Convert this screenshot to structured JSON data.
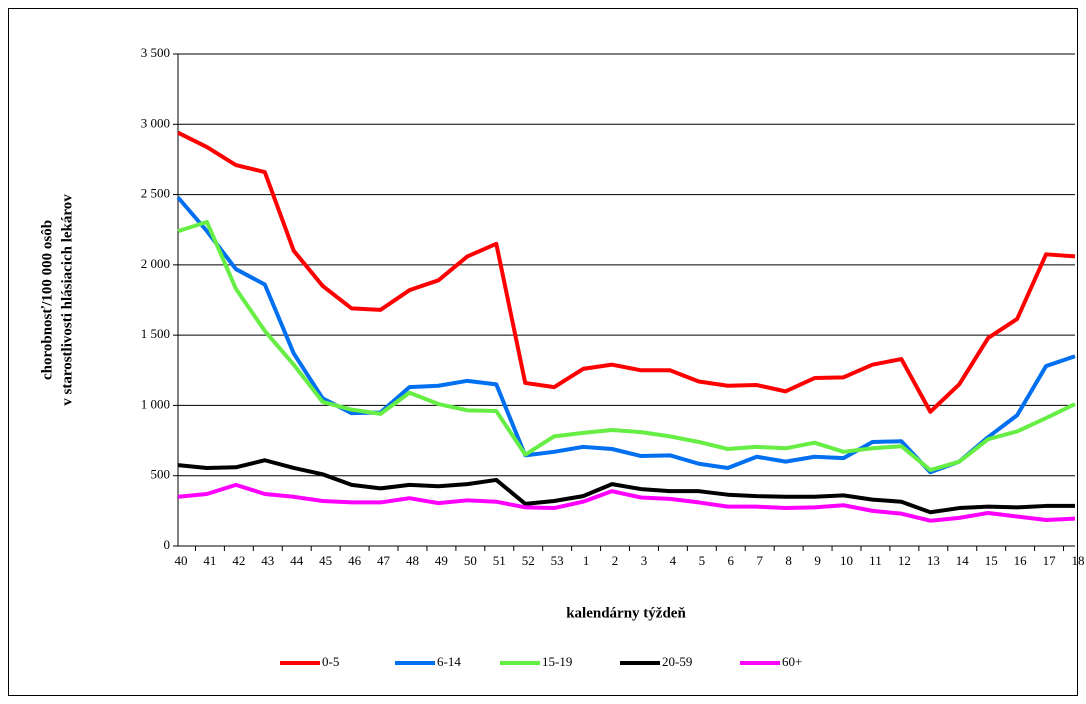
{
  "chart_data": {
    "type": "line",
    "ylabel": [
      "chorobnosť/100 000 osôb",
      "v starostlivosti hlásiacich lekárov"
    ],
    "xlabel": "kalendárny týždeň",
    "categories": [
      "40",
      "41",
      "42",
      "43",
      "44",
      "45",
      "46",
      "47",
      "48",
      "49",
      "50",
      "51",
      "52",
      "53",
      "1",
      "2",
      "3",
      "4",
      "5",
      "6",
      "7",
      "8",
      "9",
      "10",
      "11",
      "12",
      "13",
      "14",
      "15",
      "16",
      "17",
      "18"
    ],
    "ylim": [
      0,
      3500
    ],
    "yticks": [
      0,
      500,
      {
        "value": 1000,
        "label": "1 000"
      },
      {
        "value": 1500,
        "label": "1 500"
      },
      {
        "value": 2000,
        "label": "2 000"
      },
      {
        "value": 2500,
        "label": "2 500"
      },
      {
        "value": 3000,
        "label": "3 000"
      },
      {
        "value": 3500,
        "label": "3 500"
      }
    ],
    "grid": true,
    "legend": "bottom",
    "series": [
      {
        "name": "0-5",
        "color": "#ff0000",
        "values": [
          2940,
          2838,
          2710,
          2660,
          2100,
          1850,
          1690,
          1680,
          1820,
          1890,
          2060,
          2150,
          1160,
          1130,
          1260,
          1290,
          1250,
          1250,
          1170,
          1140,
          1145,
          1100,
          1195,
          1200,
          1290,
          1330,
          955,
          1150,
          1480,
          1615,
          2075,
          2060
        ]
      },
      {
        "name": "6-14",
        "color": "#0070f0",
        "values": [
          2480,
          2240,
          1970,
          1860,
          1370,
          1050,
          945,
          950,
          1130,
          1140,
          1175,
          1150,
          645,
          670,
          705,
          690,
          640,
          645,
          585,
          555,
          635,
          600,
          635,
          625,
          740,
          745,
          525,
          600,
          775,
          930,
          1280,
          1350
        ]
      },
      {
        "name": "15-19",
        "color": "#66ee44",
        "values": [
          2240,
          2305,
          1830,
          1530,
          1290,
          1025,
          970,
          940,
          1090,
          1010,
          965,
          960,
          650,
          780,
          805,
          825,
          810,
          780,
          740,
          690,
          705,
          695,
          735,
          670,
          695,
          710,
          540,
          600,
          760,
          815,
          910,
          1010
        ]
      },
      {
        "name": "20-59",
        "color": "#000000",
        "values": [
          575,
          555,
          560,
          610,
          555,
          510,
          435,
          410,
          435,
          425,
          440,
          470,
          300,
          320,
          355,
          440,
          405,
          390,
          390,
          365,
          355,
          350,
          350,
          360,
          330,
          315,
          240,
          270,
          280,
          275,
          285,
          285
        ]
      },
      {
        "name": "60+",
        "color": "#ff00ff",
        "values": [
          350,
          370,
          435,
          370,
          350,
          320,
          310,
          310,
          340,
          305,
          325,
          315,
          275,
          270,
          315,
          390,
          345,
          335,
          310,
          280,
          280,
          270,
          275,
          290,
          250,
          230,
          180,
          200,
          235,
          210,
          185,
          195
        ]
      }
    ]
  }
}
